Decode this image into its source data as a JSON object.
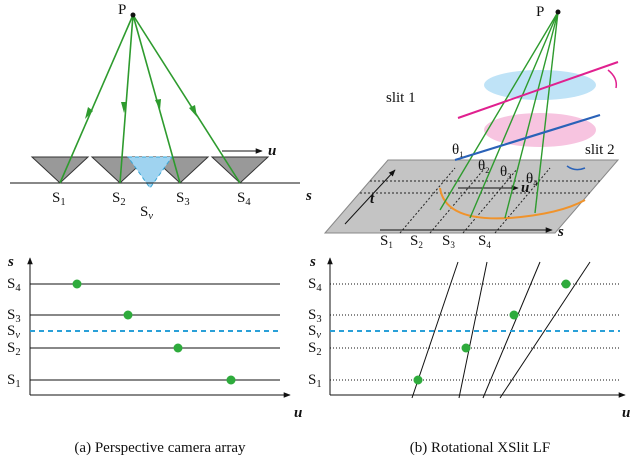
{
  "panel_a": {
    "top": {
      "point": "P",
      "u_label": "u",
      "s_label": "s",
      "cameras": [
        {
          "letter": "S",
          "index": "1"
        },
        {
          "letter": "S",
          "index": "2"
        },
        {
          "letter": "S",
          "index": "3"
        },
        {
          "letter": "S",
          "index": "4"
        }
      ],
      "virtual": {
        "letter": "S",
        "index": "v"
      }
    },
    "plot": {
      "y_label": "s",
      "x_label": "u",
      "rows": [
        {
          "letter": "S",
          "index": "4"
        },
        {
          "letter": "S",
          "index": "3"
        },
        {
          "letter": "S",
          "index": "v"
        },
        {
          "letter": "S",
          "index": "2"
        },
        {
          "letter": "S",
          "index": "1"
        }
      ]
    },
    "caption": "(a) Perspective camera array"
  },
  "panel_b": {
    "top": {
      "point": "P",
      "slit1": "slit 1",
      "slit2": "slit 2",
      "angles": [
        {
          "letter": "θ",
          "index": "1"
        },
        {
          "letter": "θ",
          "index": "2"
        },
        {
          "letter": "θ",
          "index": "3"
        },
        {
          "letter": "θ",
          "index": "4"
        }
      ],
      "t_label": "t",
      "u_label": "u",
      "s_label": "s",
      "cameras": [
        {
          "letter": "S",
          "index": "1"
        },
        {
          "letter": "S",
          "index": "2"
        },
        {
          "letter": "S",
          "index": "3"
        },
        {
          "letter": "S",
          "index": "4"
        }
      ]
    },
    "plot": {
      "y_label": "s",
      "x_label": "u",
      "rows": [
        {
          "letter": "S",
          "index": "4"
        },
        {
          "letter": "S",
          "index": "3"
        },
        {
          "letter": "S",
          "index": "v"
        },
        {
          "letter": "S",
          "index": "2"
        },
        {
          "letter": "S",
          "index": "1"
        }
      ]
    },
    "caption": "(b) Rotational XSlit LF"
  }
}
